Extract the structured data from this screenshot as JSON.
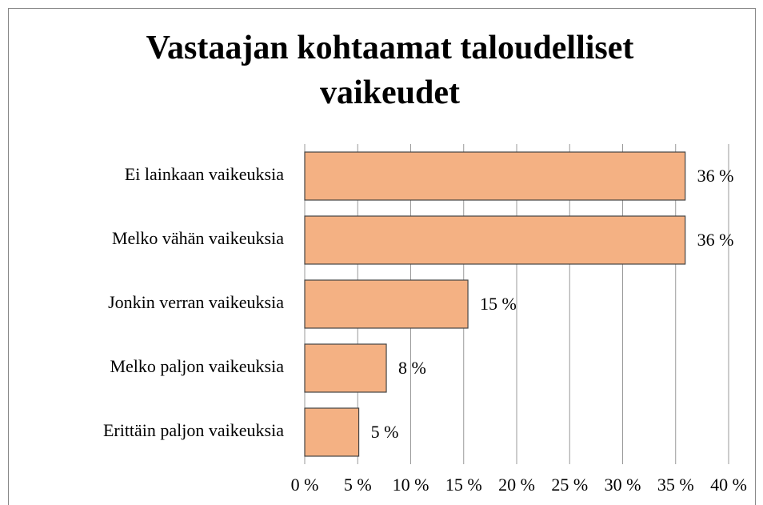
{
  "chart_data": {
    "type": "bar",
    "orientation": "horizontal",
    "title": "Vastaajan kohtaamat taloudelliset vaikeudet",
    "categories": [
      "Ei lainkaan vaikeuksia",
      "Melko vähän vaikeuksia",
      "Jonkin verran vaikeuksia",
      "Melko paljon vaikeuksia",
      "Erittäin paljon vaikeuksia"
    ],
    "values": [
      35.9,
      35.9,
      15.4,
      7.7,
      5.1
    ],
    "value_labels": [
      "36 %",
      "36 %",
      "15 %",
      "8 %",
      "5 %"
    ],
    "color": "#f4b183",
    "xlim": [
      0,
      40
    ],
    "xticks": [
      {
        "value": 0,
        "label": "0 %"
      },
      {
        "value": 5,
        "label": "5 %"
      },
      {
        "value": 10,
        "label": "10 %"
      },
      {
        "value": 15,
        "label": "15 %"
      },
      {
        "value": 20,
        "label": "20 %"
      },
      {
        "value": 25,
        "label": "25 %"
      },
      {
        "value": 30,
        "label": "30 %"
      },
      {
        "value": 35,
        "label": "35 %"
      },
      {
        "value": 40,
        "label": "40 %"
      }
    ],
    "grid": true
  }
}
